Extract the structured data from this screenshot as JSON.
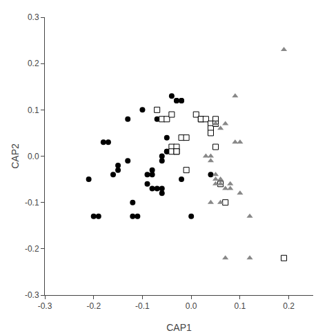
{
  "chart_data": {
    "type": "scatter",
    "xlabel": "CAP1",
    "ylabel": "CAP2",
    "xlim": [
      -0.3,
      0.25
    ],
    "ylim": [
      -0.3,
      0.3
    ],
    "xticks": [
      -0.3,
      -0.2,
      -0.1,
      {
        "value": 0.0,
        "label": "0.0"
      },
      0.1,
      0.2
    ],
    "yticks": [
      -0.3,
      -0.2,
      -0.1,
      {
        "value": 0.0,
        "label": "0.0"
      },
      0.1,
      0.2,
      0.3
    ],
    "grid": false,
    "series": [
      {
        "color": "black",
        "marker": "circle",
        "x": [
          -0.21,
          -0.2,
          -0.19,
          -0.18,
          -0.17,
          -0.16,
          -0.15,
          -0.15,
          -0.13,
          -0.13,
          -0.12,
          -0.12,
          -0.11,
          -0.1,
          -0.09,
          -0.09,
          -0.08,
          -0.08,
          -0.08,
          -0.07,
          -0.07,
          -0.06,
          -0.06,
          -0.06,
          -0.06,
          -0.05,
          -0.05,
          -0.05,
          -0.04,
          -0.03,
          -0.03,
          -0.02,
          -0.02,
          -0.02,
          0.0,
          0.04
        ],
        "y": [
          -0.05,
          -0.13,
          -0.13,
          0.03,
          0.03,
          -0.04,
          -0.02,
          -0.03,
          -0.01,
          0.08,
          -0.1,
          -0.13,
          -0.13,
          0.1,
          -0.04,
          -0.06,
          -0.03,
          -0.04,
          -0.07,
          0.08,
          -0.07,
          0.0,
          -0.01,
          -0.07,
          -0.08,
          0.04,
          0.01,
          0.01,
          0.13,
          0.12,
          0.12,
          0.12,
          0.12,
          -0.05,
          -0.13,
          -0.04
        ]
      },
      {
        "color": "white",
        "marker": "square",
        "x": [
          -0.07,
          -0.06,
          -0.05,
          -0.04,
          -0.04,
          -0.04,
          -0.03,
          -0.03,
          -0.03,
          -0.02,
          -0.01,
          -0.01,
          0.01,
          0.02,
          0.02,
          0.03,
          0.04,
          0.04,
          0.04,
          0.05,
          0.05,
          0.05,
          0.06,
          0.07,
          0.19
        ],
        "y": [
          0.1,
          0.08,
          0.08,
          0.09,
          0.02,
          0.01,
          0.02,
          0.01,
          0.01,
          0.04,
          0.04,
          -0.03,
          0.09,
          0.08,
          0.08,
          0.08,
          0.07,
          0.06,
          0.05,
          0.08,
          0.07,
          0.02,
          -0.06,
          -0.1,
          -0.22
        ]
      },
      {
        "color": "#888888",
        "marker": "triangle-up",
        "x": [
          0.03,
          0.04,
          0.04,
          0.05,
          0.05,
          0.05,
          0.05,
          0.05,
          0.06,
          0.06,
          0.06,
          0.07,
          0.07,
          0.08,
          0.08,
          0.09,
          0.09,
          0.1,
          0.1,
          0.12,
          0.04,
          0.06,
          0.07,
          0.12,
          0.19
        ],
        "y": [
          0.0,
          0.0,
          -0.01,
          0.07,
          0.07,
          -0.04,
          -0.05,
          -0.06,
          0.06,
          -0.05,
          -0.06,
          0.07,
          -0.07,
          -0.06,
          -0.07,
          0.13,
          0.03,
          0.03,
          -0.08,
          -0.13,
          -0.1,
          -0.1,
          -0.22,
          -0.22,
          0.23
        ]
      }
    ]
  }
}
